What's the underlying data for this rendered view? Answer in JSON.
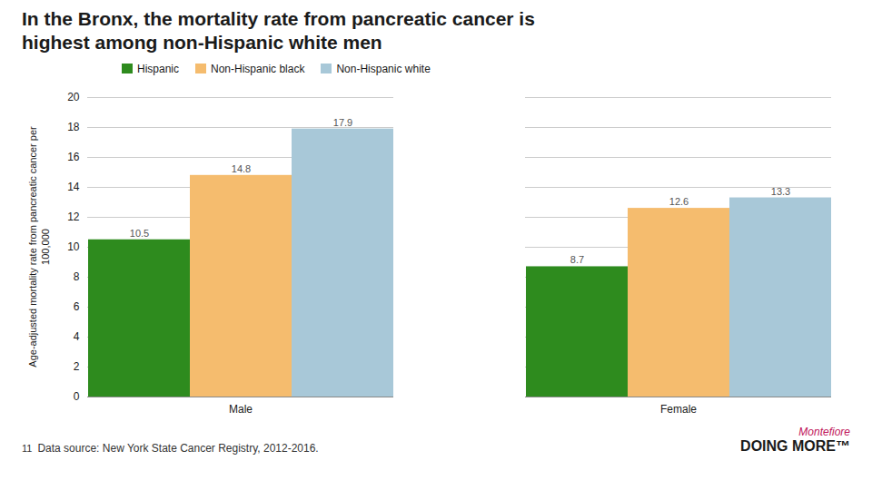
{
  "chart_data": {
    "type": "bar",
    "title": "In the Bronx, the mortality rate from pancreatic cancer is\nhighest among non-Hispanic white men",
    "ylabel": "Age-adjusted mortality rate from pancreatic cancer per\n100,000",
    "categories": [
      "Male",
      "Female"
    ],
    "series": [
      {
        "name": "Hispanic",
        "color": "#2e8b1e",
        "values": [
          10.5,
          8.7
        ]
      },
      {
        "name": "Non-Hispanic black",
        "color": "#f5bc6e",
        "values": [
          14.8,
          12.6
        ]
      },
      {
        "name": "Non-Hispanic white",
        "color": "#a8c8d8",
        "values": [
          17.9,
          13.3
        ]
      }
    ],
    "ylim": [
      0,
      20
    ],
    "yticks": [
      0,
      2,
      4,
      6,
      8,
      10,
      12,
      14,
      16,
      18,
      20
    ],
    "grid": true,
    "legend": "top",
    "data_labels": true,
    "annotations": [
      "11",
      "Data source: New York State Cancer Registry, 2012-2016.",
      "Montefiore",
      "DOING MORE™"
    ]
  }
}
